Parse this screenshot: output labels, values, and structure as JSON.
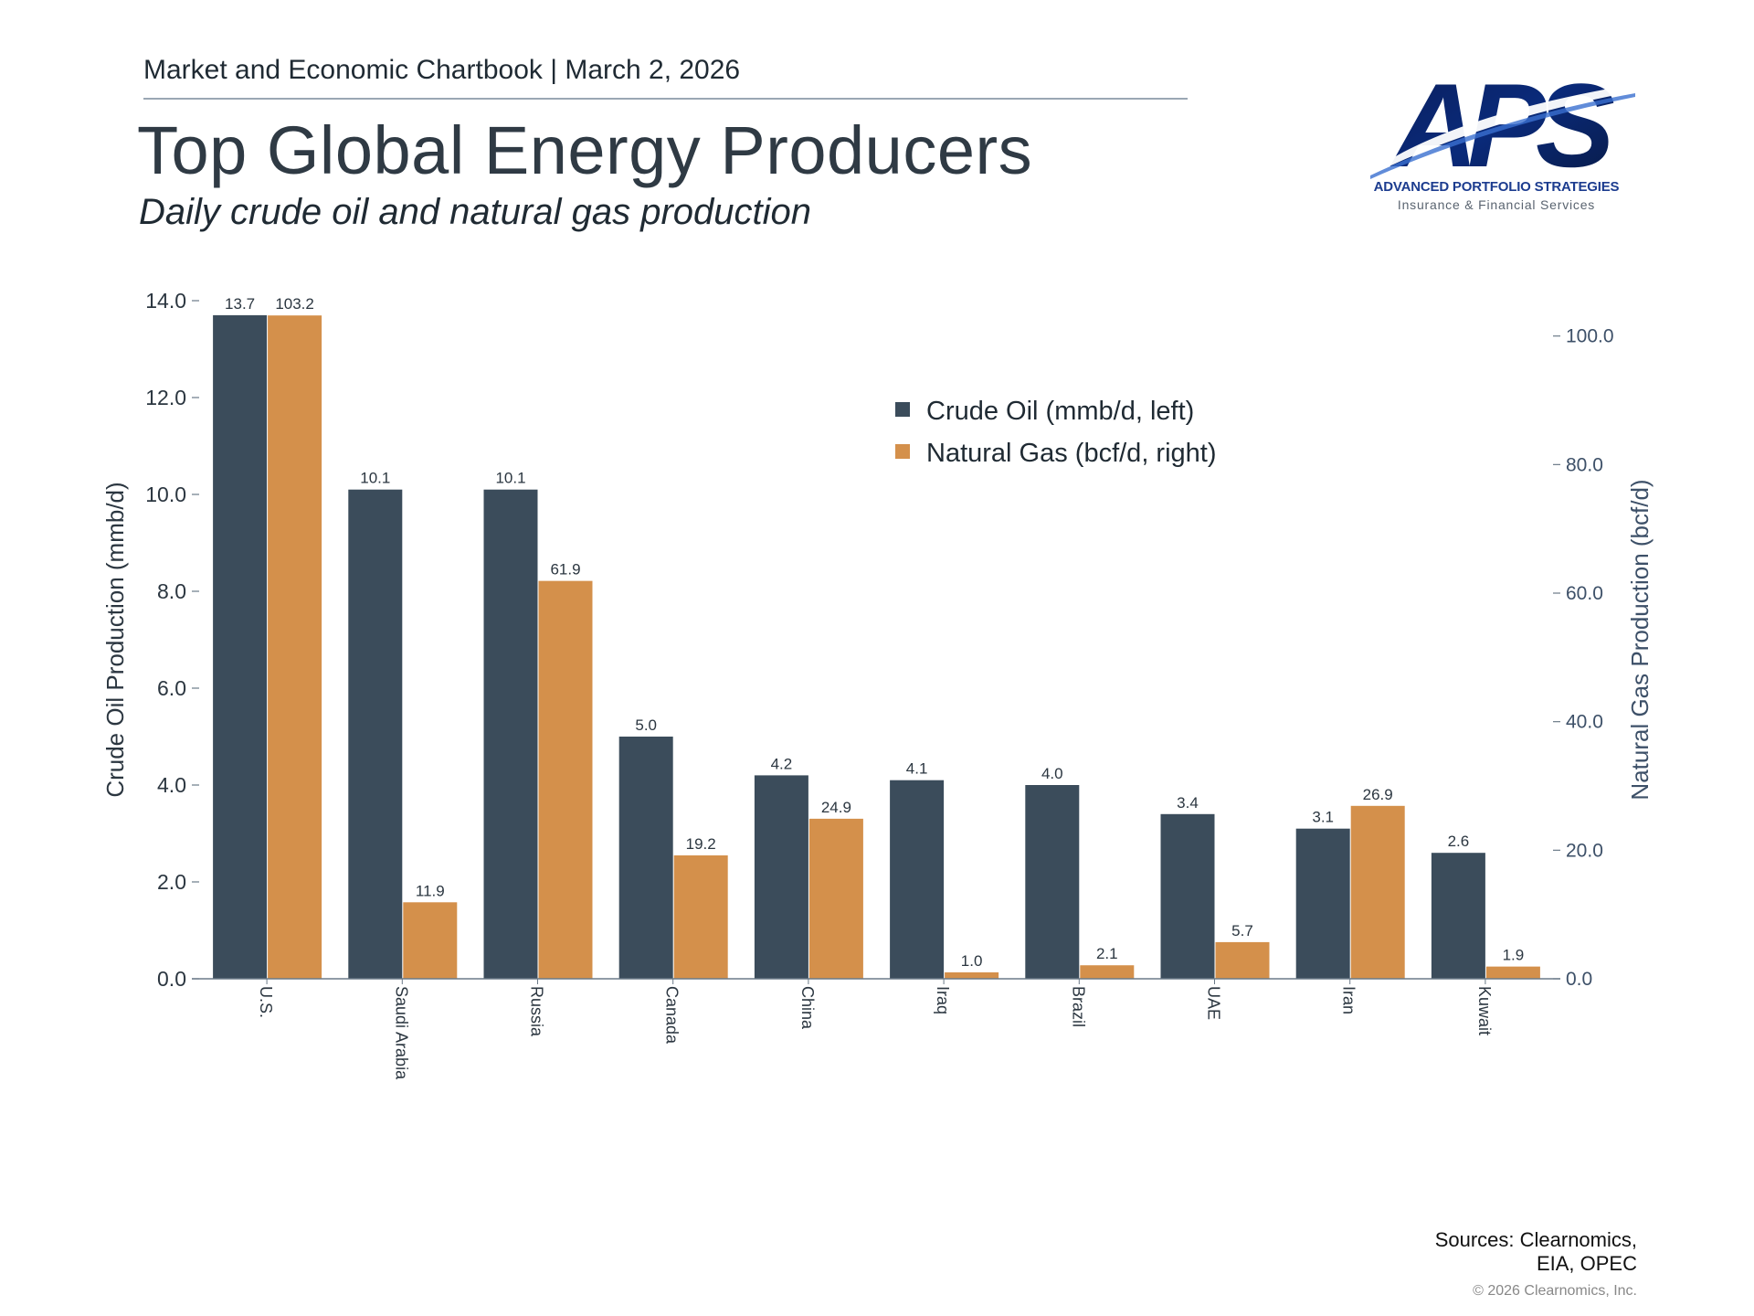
{
  "header": {
    "chartbook": "Market and Economic Chartbook | March 2, 2026",
    "title": "Top Global Energy Producers",
    "subtitle": "Daily crude oil and natural gas production"
  },
  "logo": {
    "letters": "APS",
    "name": "ADVANCED PORTFOLIO STRATEGIES",
    "tagline": "Insurance & Financial Services"
  },
  "footer": {
    "sources_line1": "Sources: Clearnomics,",
    "sources_line2": "EIA, OPEC",
    "copyright": "© 2026 Clearnomics, Inc."
  },
  "colors": {
    "crude": "#3b4c5b",
    "gas": "#d4904b",
    "axis_text": "#2b3640",
    "right_axis_text": "#3d5068"
  },
  "chart_data": {
    "type": "bar",
    "title": "",
    "categories": [
      "U.S.",
      "Saudi Arabia",
      "Russia",
      "Canada",
      "China",
      "Iraq",
      "Brazil",
      "UAE",
      "Iran",
      "Kuwait"
    ],
    "series": [
      {
        "name": "Crude Oil (mmb/d, left)",
        "axis": "left",
        "values": [
          13.7,
          10.1,
          10.1,
          5.0,
          4.2,
          4.1,
          4.0,
          3.4,
          3.1,
          2.6
        ],
        "labels": [
          "13.7",
          "10.1",
          "10.1",
          "5.0",
          "4.2",
          "4.1",
          "4.0",
          "3.4",
          "3.1",
          "2.6"
        ]
      },
      {
        "name": "Natural Gas (bcf/d, right)",
        "axis": "right",
        "values": [
          103.2,
          11.9,
          61.9,
          19.2,
          24.9,
          1.0,
          2.1,
          5.7,
          26.9,
          1.9
        ],
        "labels": [
          "103.2",
          "11.9",
          "61.9",
          "19.2",
          "24.9",
          "1.0",
          "2.1",
          "5.7",
          "26.9",
          "1.9"
        ]
      }
    ],
    "ylabel": "Crude Oil Production (mmb/d)",
    "ylabel_right": "Natural Gas Production (bcf/d)",
    "ylim": [
      0,
      14
    ],
    "ylim_right": [
      0,
      105.5
    ],
    "yticks": [
      "0.0",
      "2.0",
      "4.0",
      "6.0",
      "8.0",
      "10.0",
      "12.0",
      "14.0"
    ],
    "yticks_right": [
      "0.0",
      "20.0",
      "40.0",
      "60.0",
      "80.0",
      "100.0"
    ],
    "legend_position": "upper-right",
    "grid": false
  }
}
